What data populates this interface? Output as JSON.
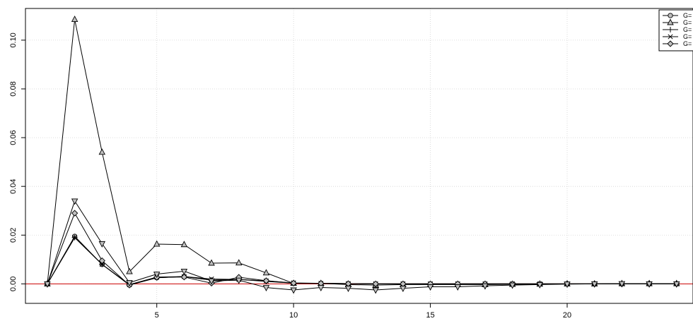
{
  "chart_data": {
    "type": "line",
    "title": "",
    "xlabel": "",
    "ylabel": "",
    "xlim": [
      0.2,
      24.6
    ],
    "ylim": [
      -0.008,
      0.113
    ],
    "x_ticks": [
      5,
      10,
      15,
      20
    ],
    "y_ticks": [
      0.0,
      0.02,
      0.04,
      0.06,
      0.08,
      0.1
    ],
    "x_tick_labels": [
      "5",
      "10",
      "15",
      "20"
    ],
    "y_tick_labels": [
      "0.00",
      "0.02",
      "0.04",
      "0.06",
      "0.08",
      "0.10"
    ],
    "grid": true,
    "legend_position": "top-right",
    "reference_line": {
      "y": 0,
      "color": "#cc0000"
    },
    "x": [
      1,
      2,
      3,
      4,
      5,
      6,
      7,
      8,
      9,
      10,
      11,
      12,
      13,
      14,
      15,
      16,
      17,
      18,
      19,
      20,
      21,
      22,
      23,
      24
    ],
    "series": [
      {
        "name": "G=",
        "marker": "circle",
        "values": [
          0.0,
          0.0195,
          0.008,
          -0.0005,
          0.0025,
          0.003,
          0.0015,
          0.0018,
          0.0012,
          0.0003,
          0.0002,
          0.0001,
          0.0,
          0.0,
          0.0,
          0.0,
          0.0,
          0.0,
          0.0,
          0.0,
          0.0,
          0.0,
          0.0,
          0.0
        ]
      },
      {
        "name": "G=",
        "marker": "triangle-up",
        "values": [
          0.0,
          0.1085,
          0.054,
          0.005,
          0.0163,
          0.0161,
          0.0085,
          0.0086,
          0.0045,
          0.0002,
          0.0002,
          -0.0003,
          -0.0005,
          -0.0003,
          -0.0003,
          -0.0003,
          -0.0003,
          -0.0002,
          -0.0001,
          0.0,
          0.0,
          0.0001,
          0.0001,
          0.0001
        ]
      },
      {
        "name": "G=",
        "marker": "plus",
        "values": [
          0.0,
          0.019,
          0.008,
          -0.0003,
          0.0025,
          0.003,
          0.0015,
          0.0018,
          0.001,
          0.0003,
          0.0002,
          0.0001,
          0.0,
          0.0,
          0.0,
          0.0,
          0.0,
          0.0,
          0.0,
          0.0,
          0.0,
          0.0,
          0.0,
          0.0
        ]
      },
      {
        "name": "G=",
        "marker": "cross",
        "values": [
          0.0,
          0.019,
          0.008,
          -0.0003,
          0.0028,
          0.003,
          0.002,
          0.0018,
          0.0012,
          0.0004,
          0.0002,
          0.0001,
          0.0,
          0.0,
          0.0,
          0.0,
          0.0,
          0.0,
          0.0,
          0.0,
          0.0,
          0.0,
          0.0,
          0.0
        ]
      },
      {
        "name": "G=",
        "marker": "diamond",
        "values": [
          0.0,
          0.029,
          0.0095,
          -0.0005,
          0.0027,
          0.0028,
          0.0003,
          0.0027,
          0.0013,
          0.0003,
          0.0002,
          0.0001,
          0.0,
          0.0,
          0.0,
          0.0,
          0.0,
          0.0,
          0.0,
          0.0,
          0.0,
          0.0,
          0.0,
          0.0
        ]
      },
      {
        "name": "",
        "marker": "triangle-down",
        "values": [
          0.0,
          0.034,
          0.0165,
          0.0005,
          0.004,
          0.0052,
          0.0012,
          0.0015,
          -0.0015,
          -0.0025,
          -0.0015,
          -0.0018,
          -0.0025,
          -0.0018,
          -0.0012,
          -0.0012,
          -0.0008,
          -0.0005,
          -0.0003,
          -0.0001,
          0.0,
          0.0001,
          0.0,
          0.0
        ]
      }
    ]
  }
}
